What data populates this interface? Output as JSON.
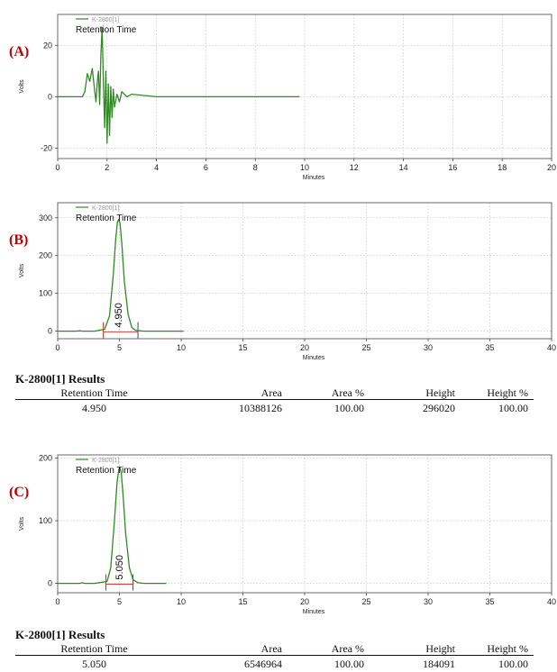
{
  "chart_data": [
    {
      "type": "line",
      "panel_label": "(A)",
      "xlabel": "Minutes",
      "ylabel": "Volts",
      "xlim": [
        0,
        20
      ],
      "ylim": [
        -24,
        32
      ],
      "xticks": [
        0,
        2,
        4,
        6,
        8,
        10,
        12,
        14,
        16,
        18,
        20
      ],
      "yticks": [
        -20,
        0,
        20
      ],
      "grid": true,
      "legend": {
        "series_name": "K-2800[1]",
        "subtitle": "Retention Time",
        "position": "top-left"
      },
      "series": [
        {
          "name": "K-2800[1]",
          "color": "#2e8b22",
          "x": [
            0,
            1.0,
            1.1,
            1.2,
            1.3,
            1.4,
            1.5,
            1.55,
            1.6,
            1.65,
            1.7,
            1.75,
            1.8,
            1.85,
            1.9,
            1.95,
            2.0,
            2.05,
            2.1,
            2.15,
            2.2,
            2.25,
            2.3,
            2.4,
            2.5,
            2.6,
            2.8,
            3.0,
            3.5,
            4.0,
            6.0,
            8.0,
            9.8
          ],
          "y": [
            0,
            0,
            2,
            9,
            6,
            11,
            2,
            -2,
            5,
            10,
            -3,
            16,
            27,
            6,
            -12,
            10,
            -18,
            5,
            -15,
            4,
            -8,
            3,
            -4,
            1,
            -2,
            2,
            0,
            1,
            0.5,
            0,
            0,
            0,
            0
          ]
        }
      ]
    },
    {
      "type": "line",
      "panel_label": "(B)",
      "xlabel": "Minutes",
      "ylabel": "Volts",
      "xlim": [
        0,
        40
      ],
      "ylim": [
        -20,
        340
      ],
      "xticks": [
        0,
        5,
        10,
        15,
        20,
        25,
        30,
        35,
        40
      ],
      "yticks": [
        0,
        100,
        200,
        300
      ],
      "grid": true,
      "legend": {
        "series_name": "K-2800[1]",
        "subtitle": "Retention Time",
        "position": "top-left"
      },
      "peak_label": "4.950",
      "peak_x": 4.95,
      "series": [
        {
          "name": "K-2800[1]",
          "color": "#2e8b22",
          "x": [
            0,
            1.5,
            1.8,
            2.0,
            3.0,
            3.8,
            4.2,
            4.5,
            4.7,
            4.85,
            4.95,
            5.05,
            5.2,
            5.4,
            5.7,
            6.0,
            6.3,
            7.0,
            10.2
          ],
          "y": [
            0,
            0,
            1,
            0,
            0,
            5,
            40,
            150,
            245,
            290,
            296,
            285,
            230,
            130,
            45,
            10,
            2,
            0,
            0
          ]
        }
      ],
      "baseline_markers": [
        {
          "x": 3.7,
          "color": "#cc2222"
        },
        {
          "x": 6.5,
          "color": "#3344aa"
        }
      ]
    },
    {
      "type": "line",
      "panel_label": "(C)",
      "xlabel": "Minutes",
      "ylabel": "Volts",
      "xlim": [
        0,
        40
      ],
      "ylim": [
        -15,
        205
      ],
      "xticks": [
        0,
        5,
        10,
        15,
        20,
        25,
        30,
        35,
        40
      ],
      "yticks": [
        0,
        100,
        200
      ],
      "grid": true,
      "legend": {
        "series_name": "K-2800[1]",
        "subtitle": "Retention Time",
        "position": "top-left"
      },
      "peak_label": "5.050",
      "peak_x": 5.05,
      "series": [
        {
          "name": "K-2800[1]",
          "color": "#2e8b22",
          "x": [
            0,
            1.8,
            2.0,
            2.2,
            3.0,
            4.0,
            4.3,
            4.6,
            4.8,
            4.95,
            5.05,
            5.15,
            5.3,
            5.5,
            5.8,
            6.1,
            6.5,
            7.0,
            8.8
          ],
          "y": [
            0,
            0,
            1,
            0,
            0,
            3,
            25,
            100,
            160,
            182,
            184,
            176,
            140,
            80,
            25,
            6,
            1,
            0,
            0
          ]
        }
      ],
      "baseline_markers": [
        {
          "x": 3.9,
          "color": "#cc2222"
        },
        {
          "x": 6.1,
          "color": "#3344aa"
        }
      ]
    }
  ],
  "results_b": {
    "title": "K-2800[1] Results",
    "headers": [
      "Retention Time",
      "Area",
      "Area %",
      "Height",
      "Height %"
    ],
    "row": [
      "4.950",
      "10388126",
      "100.00",
      "296020",
      "100.00"
    ]
  },
  "results_c": {
    "title": "K-2800[1] Results",
    "headers": [
      "Retention Time",
      "Area",
      "Area %",
      "Height",
      "Height %"
    ],
    "row": [
      "5.050",
      "6546964",
      "100.00",
      "184091",
      "100.00"
    ]
  }
}
